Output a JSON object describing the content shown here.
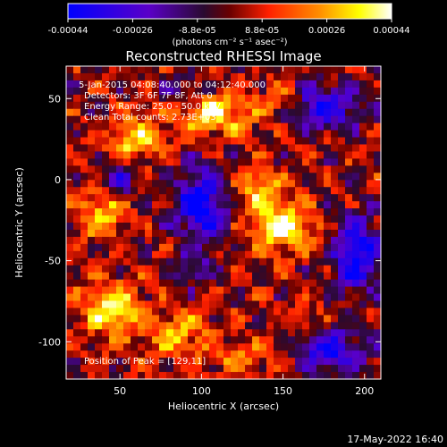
{
  "chart_data": {
    "type": "heatmap",
    "title": "Reconstructed RHESSI Image",
    "xlabel": "Heliocentric X (arcsec)",
    "ylabel": "Heliocentric Y (arcsec)",
    "xlim": [
      17,
      210
    ],
    "ylim": [
      -123,
      70
    ],
    "x_ticks": [
      50,
      100,
      150,
      200
    ],
    "y_ticks": [
      50,
      0,
      -50,
      -100
    ],
    "colorbar": {
      "range": [
        -0.00044,
        0.00044
      ],
      "ticks": [
        "-0.00044",
        "-0.00026",
        "-8.8e-05",
        "8.8e-05",
        "0.00026",
        "0.00044"
      ],
      "units": "(photons cm⁻² s⁻¹ asec⁻²)",
      "colormap": [
        "#0000ff",
        "#5a00c8",
        "#3a1030",
        "#9a0000",
        "#ff3000",
        "#ff9000",
        "#ffff00",
        "#ffffff"
      ]
    },
    "annotations": [
      "5-Jan-2015 04:08:40.000 to 04:12:40.000",
      "Detectors: 3F 6F 7F 8F, Att 0",
      "Energy Range: 25.0 - 50.0 keV",
      "Clean     Total counts: 2.73E+03"
    ],
    "peak": {
      "label": "Position of Peak = [129,11]",
      "x": 129,
      "y": 11
    },
    "timestamp": "17-May-2022 16:40"
  }
}
